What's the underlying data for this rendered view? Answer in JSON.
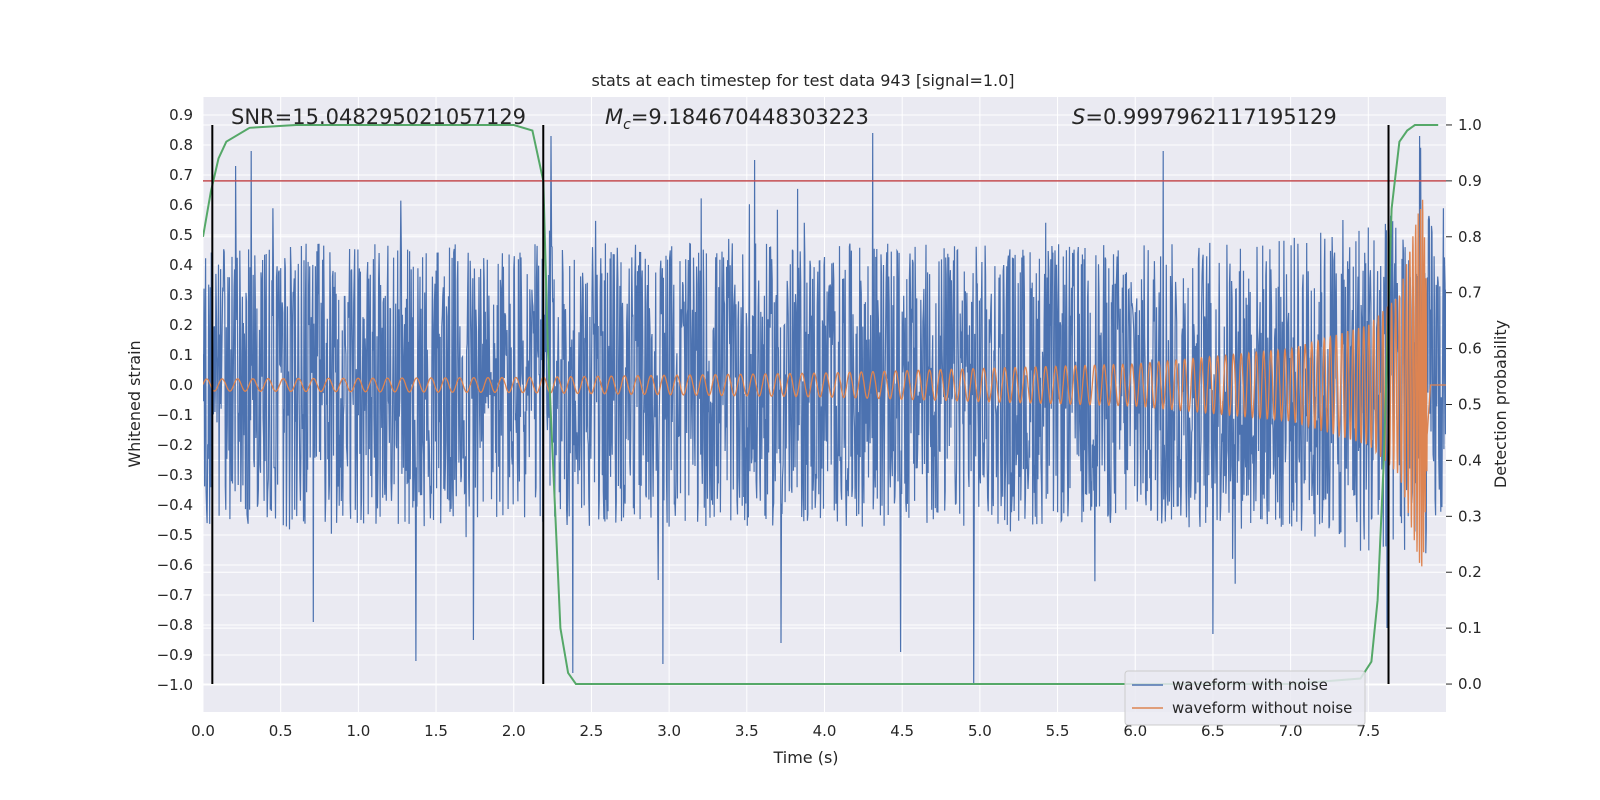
{
  "chart_data": {
    "type": "line",
    "title": "stats at each timestep for test data 943 [signal=1.0]",
    "xlabel": "Time (s)",
    "ylabel": "Whitened strain",
    "ylabel_right": "Detection probability",
    "xlim": [
      0.0,
      8.0
    ],
    "ylim": [
      -1.09,
      0.96
    ],
    "ylim_right": [
      -0.05,
      1.05
    ],
    "x_ticks": [
      "0.0",
      "0.5",
      "1.0",
      "1.5",
      "2.0",
      "2.5",
      "3.0",
      "3.5",
      "4.0",
      "4.5",
      "5.0",
      "5.5",
      "6.0",
      "6.5",
      "7.0",
      "7.5"
    ],
    "y_ticks": [
      "0.9",
      "0.8",
      "0.7",
      "0.6",
      "0.5",
      "0.4",
      "0.3",
      "0.2",
      "0.1",
      "0.0",
      "-0.1",
      "-0.2",
      "-0.3",
      "-0.4",
      "-0.5",
      "-0.6",
      "-0.7",
      "-0.8",
      "-0.9",
      "-1.0"
    ],
    "y_right_ticks": [
      "1.0",
      "0.9",
      "0.8",
      "0.7",
      "0.6",
      "0.5",
      "0.4",
      "0.3",
      "0.2",
      "0.1",
      "0.0"
    ],
    "grid": true,
    "legend_position": "lower-right",
    "annotations": {
      "snr": "SNR=15.048295021057129",
      "mc_symbol": "M",
      "mc_sub": "c",
      "mc_value": "=9.184670448303223",
      "s_symbol": "S",
      "s_value": "=0.9997962117195129"
    },
    "threshold": {
      "value": 0.9,
      "axis": "right",
      "color": "#c44e52"
    },
    "vertical_markers": [
      0.06,
      2.19,
      7.63
    ],
    "series": [
      {
        "name": "waveform with noise",
        "color": "#4c72b0",
        "axis": "left",
        "description_envelope_x": [
          0.0,
          1.0,
          2.0,
          3.0,
          4.0,
          5.0,
          6.0,
          7.0,
          7.5,
          7.9,
          8.0
        ],
        "envelope_typical": [
          0.45,
          0.45,
          0.45,
          0.45,
          0.45,
          0.45,
          0.45,
          0.47,
          0.55,
          0.55,
          0.4
        ],
        "peaks": [
          {
            "x": 0.21,
            "y": 0.73
          },
          {
            "x": 0.31,
            "y": 0.78
          },
          {
            "x": 0.71,
            "y": -0.79
          },
          {
            "x": 1.37,
            "y": -0.92
          },
          {
            "x": 1.74,
            "y": -0.85
          },
          {
            "x": 2.24,
            "y": 0.83
          },
          {
            "x": 2.38,
            "y": -0.96
          },
          {
            "x": 2.96,
            "y": -0.93
          },
          {
            "x": 3.55,
            "y": 0.75
          },
          {
            "x": 3.72,
            "y": -0.86
          },
          {
            "x": 4.31,
            "y": 0.84
          },
          {
            "x": 4.49,
            "y": -0.89
          },
          {
            "x": 4.96,
            "y": -1.0
          },
          {
            "x": 6.18,
            "y": 0.78
          },
          {
            "x": 6.5,
            "y": -0.83
          },
          {
            "x": 7.62,
            "y": -0.81
          },
          {
            "x": 7.83,
            "y": 0.83
          }
        ]
      },
      {
        "name": "waveform without noise",
        "color": "#dd8452",
        "axis": "left",
        "chirp_amplitude_x": [
          0.0,
          2.0,
          4.0,
          6.0,
          7.0,
          7.5,
          7.7,
          7.85,
          7.9,
          8.0
        ],
        "chirp_amplitude_y": [
          0.02,
          0.025,
          0.04,
          0.07,
          0.12,
          0.2,
          0.3,
          0.64,
          0.0,
          0.0
        ]
      },
      {
        "name": "detection probability",
        "color": "#55a868",
        "axis": "right",
        "x": [
          0.0,
          0.05,
          0.1,
          0.15,
          0.3,
          0.6,
          1.0,
          1.5,
          2.0,
          2.12,
          2.19,
          2.22,
          2.3,
          2.35,
          2.4,
          2.5,
          3.0,
          4.0,
          5.0,
          6.0,
          7.0,
          7.45,
          7.52,
          7.56,
          7.6,
          7.65,
          7.7,
          7.75,
          7.8,
          7.95
        ],
        "y": [
          0.8,
          0.88,
          0.94,
          0.97,
          0.995,
          1.0,
          1.0,
          1.0,
          1.0,
          0.99,
          0.9,
          0.6,
          0.1,
          0.02,
          0.0,
          0.0,
          0.0,
          0.0,
          0.0,
          0.0,
          0.0,
          0.01,
          0.04,
          0.15,
          0.4,
          0.85,
          0.97,
          0.99,
          1.0,
          1.0
        ]
      }
    ]
  }
}
